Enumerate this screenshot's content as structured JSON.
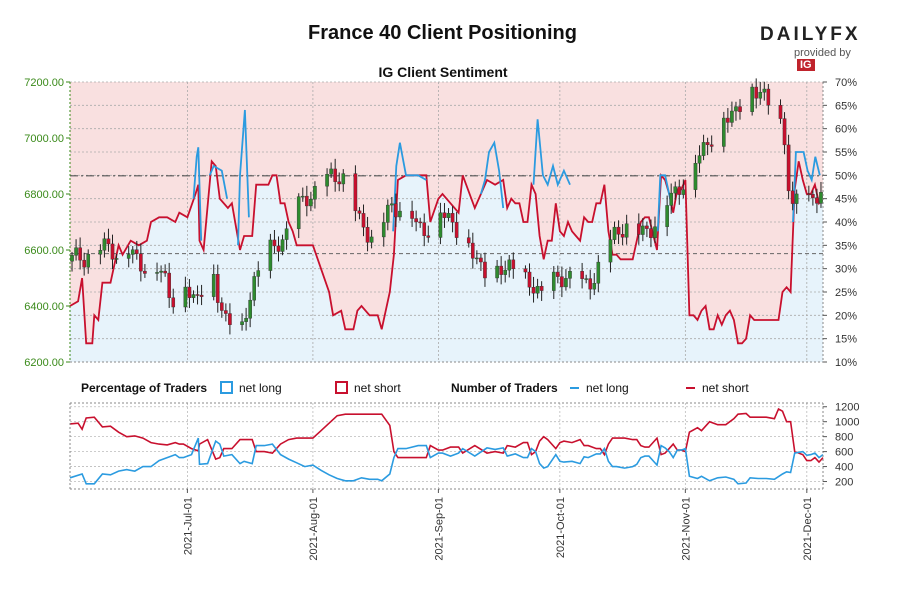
{
  "header": {
    "title": "France 40 Client Positioning",
    "subtitle": "IG Client Sentiment",
    "logo_text": "DAILYFX",
    "logo_sub": "provided by",
    "logo_ig": "IG"
  },
  "legend": {
    "pct_title": "Percentage of Traders",
    "pct_long": "net long",
    "pct_short": "net short",
    "num_title": "Number of Traders",
    "num_long": "net long",
    "num_short": "net short"
  },
  "colors": {
    "long": "#2b9be0",
    "short": "#c8102e",
    "long_fill": "#e7f3fb",
    "short_fill": "#f9e0e0",
    "price_axis": "#3a8a1a",
    "candle_up": "#2e8b2e",
    "candle_down": "#c8102e"
  },
  "chart_data": {
    "type": "candlestick+line",
    "title": "France 40 Client Positioning",
    "subtitle": "IG Client Sentiment",
    "x_tick_labels": [
      "2021-Jul-01",
      "2021-Aug-01",
      "2021-Sep-01",
      "2021-Oct-01",
      "2021-Nov-01",
      "2021-Dec-01"
    ],
    "x_tick_days": [
      29,
      60,
      91,
      121,
      152,
      182
    ],
    "x_range_days": [
      0,
      186
    ],
    "price_axis": {
      "ticks": [
        6200,
        6400,
        6600,
        6800,
        7000,
        7200
      ],
      "tick_labels": [
        "6200.00",
        "6400.00",
        "6600.00",
        "6800.00",
        "7000.00",
        "7200.00"
      ],
      "ylim": [
        6200,
        7200
      ]
    },
    "pct_axis": {
      "ticks": [
        10,
        15,
        20,
        25,
        30,
        35,
        40,
        45,
        50,
        55,
        60,
        65,
        70
      ],
      "tick_labels": [
        "10%",
        "15%",
        "20%",
        "25%",
        "30%",
        "35%",
        "40%",
        "45%",
        "50%",
        "55%",
        "60%",
        "65%",
        "70%"
      ],
      "ylim": [
        10,
        70
      ]
    },
    "count_axis": {
      "ticks": [
        200,
        400,
        600,
        800,
        1000,
        1200
      ],
      "tick_labels": [
        "200",
        "400",
        "600",
        "800",
        "1000",
        "1200"
      ],
      "ylim": [
        100,
        1250
      ]
    },
    "ref_lines": {
      "price_dashdot": 6865,
      "price_dashed": 6587
    },
    "pct_short_keypoints": [
      [
        0,
        22
      ],
      [
        2,
        23
      ],
      [
        3,
        28
      ],
      [
        4,
        14
      ],
      [
        5.5,
        14
      ],
      [
        6,
        20
      ],
      [
        7,
        19
      ],
      [
        8,
        27
      ],
      [
        10,
        27
      ],
      [
        12,
        35
      ],
      [
        13,
        33
      ],
      [
        15,
        36
      ],
      [
        17,
        35
      ],
      [
        19,
        36
      ],
      [
        20,
        40
      ],
      [
        22,
        41
      ],
      [
        24,
        41
      ],
      [
        26,
        40
      ],
      [
        27,
        42
      ],
      [
        29,
        41
      ],
      [
        31,
        46
      ],
      [
        31.7,
        48
      ],
      [
        32,
        36
      ],
      [
        33,
        34
      ],
      [
        35,
        53
      ],
      [
        36,
        52
      ],
      [
        37,
        45
      ],
      [
        39,
        43
      ],
      [
        40,
        44
      ],
      [
        42,
        34
      ],
      [
        43,
        37
      ],
      [
        45,
        37
      ],
      [
        46,
        48
      ],
      [
        48,
        48
      ],
      [
        49,
        48
      ],
      [
        50,
        50
      ],
      [
        51,
        50
      ],
      [
        52,
        44
      ],
      [
        53,
        44
      ],
      [
        54,
        40
      ],
      [
        55,
        38
      ],
      [
        56,
        35
      ],
      [
        57,
        35
      ],
      [
        58,
        35
      ],
      [
        60,
        35
      ],
      [
        62,
        30
      ],
      [
        64,
        25
      ],
      [
        65,
        20
      ],
      [
        67,
        21
      ],
      [
        68,
        17
      ],
      [
        70,
        17
      ],
      [
        71,
        21
      ],
      [
        72,
        22
      ],
      [
        74,
        20
      ],
      [
        76,
        20
      ],
      [
        77,
        17
      ],
      [
        79,
        25
      ],
      [
        80,
        33
      ],
      [
        81,
        49
      ],
      [
        83,
        50
      ],
      [
        86,
        50
      ],
      [
        88,
        50
      ],
      [
        89,
        40
      ],
      [
        91,
        45
      ],
      [
        92,
        46
      ],
      [
        94,
        44
      ],
      [
        96,
        42
      ],
      [
        97,
        50
      ],
      [
        100,
        43
      ],
      [
        103,
        49
      ],
      [
        105,
        48
      ],
      [
        107,
        49
      ],
      [
        108,
        43
      ],
      [
        109,
        45
      ],
      [
        110,
        44
      ],
      [
        111,
        44
      ],
      [
        112,
        40
      ],
      [
        113,
        40
      ],
      [
        114,
        48
      ],
      [
        115,
        46
      ],
      [
        116,
        37
      ],
      [
        117,
        32
      ],
      [
        118,
        36
      ],
      [
        119,
        36
      ],
      [
        120,
        44
      ],
      [
        121,
        38
      ],
      [
        122,
        37
      ],
      [
        123,
        40
      ],
      [
        124,
        38
      ],
      [
        125,
        37
      ],
      [
        126,
        36
      ],
      [
        127,
        41
      ],
      [
        128,
        40
      ],
      [
        129,
        40
      ],
      [
        130,
        44
      ],
      [
        131,
        44
      ],
      [
        132,
        48
      ],
      [
        133,
        38
      ],
      [
        134,
        33
      ],
      [
        135,
        33
      ],
      [
        136,
        32
      ],
      [
        137,
        32
      ],
      [
        138,
        32
      ],
      [
        139,
        32
      ],
      [
        140,
        36
      ],
      [
        141,
        40
      ],
      [
        142,
        41
      ],
      [
        143,
        41
      ],
      [
        145,
        34
      ],
      [
        146,
        50
      ],
      [
        147,
        49
      ],
      [
        148,
        46
      ],
      [
        149,
        42
      ],
      [
        150,
        47
      ],
      [
        151,
        47
      ],
      [
        152,
        49
      ],
      [
        153,
        20
      ],
      [
        154,
        20
      ],
      [
        155,
        19
      ],
      [
        156,
        21
      ],
      [
        157,
        22
      ],
      [
        158,
        17
      ],
      [
        159,
        17
      ],
      [
        160,
        20
      ],
      [
        161,
        18
      ],
      [
        162,
        20
      ],
      [
        163,
        21
      ],
      [
        164,
        19
      ],
      [
        165,
        14
      ],
      [
        166,
        14
      ],
      [
        167,
        15
      ],
      [
        168,
        20
      ],
      [
        169,
        19
      ],
      [
        170,
        19
      ],
      [
        171,
        19
      ],
      [
        172,
        19
      ],
      [
        174,
        19
      ],
      [
        175,
        19
      ],
      [
        176,
        25
      ],
      [
        177,
        26
      ],
      [
        178,
        25
      ],
      [
        179,
        47
      ],
      [
        180,
        53
      ],
      [
        181,
        49
      ],
      [
        182,
        46
      ],
      [
        183,
        46
      ],
      [
        184,
        48
      ],
      [
        185,
        44
      ],
      [
        186,
        45
      ]
    ],
    "candles_approx": "daily OHLC candles from ~6450 (late June) rising to ~7180 (mid Nov) and ending near ~6800 (early Dec)",
    "count_long_keypoints": [
      [
        0,
        250
      ],
      [
        3,
        300
      ],
      [
        4,
        170
      ],
      [
        6,
        170
      ],
      [
        8,
        300
      ],
      [
        10,
        290
      ],
      [
        12,
        340
      ],
      [
        14,
        360
      ],
      [
        16,
        340
      ],
      [
        18,
        400
      ],
      [
        20,
        400
      ],
      [
        22,
        480
      ],
      [
        24,
        520
      ],
      [
        26,
        560
      ],
      [
        27,
        520
      ],
      [
        28,
        520
      ],
      [
        30,
        560
      ],
      [
        31.7,
        780
      ],
      [
        32,
        430
      ],
      [
        34,
        440
      ],
      [
        36,
        740
      ],
      [
        37,
        700
      ],
      [
        38,
        540
      ],
      [
        40,
        560
      ],
      [
        42,
        440
      ],
      [
        43,
        470
      ],
      [
        45,
        440
      ],
      [
        46,
        680
      ],
      [
        48,
        680
      ],
      [
        50,
        700
      ],
      [
        52,
        560
      ],
      [
        54,
        500
      ],
      [
        56,
        450
      ],
      [
        58,
        400
      ],
      [
        60,
        420
      ],
      [
        62,
        350
      ],
      [
        64,
        290
      ],
      [
        66,
        240
      ],
      [
        68,
        210
      ],
      [
        70,
        210
      ],
      [
        72,
        250
      ],
      [
        74,
        230
      ],
      [
        76,
        230
      ],
      [
        77,
        210
      ],
      [
        79,
        300
      ],
      [
        80,
        520
      ],
      [
        81,
        640
      ],
      [
        83,
        640
      ],
      [
        86,
        680
      ],
      [
        88,
        680
      ],
      [
        89,
        520
      ],
      [
        91,
        580
      ],
      [
        92,
        580
      ],
      [
        94,
        540
      ],
      [
        96,
        580
      ],
      [
        97,
        640
      ],
      [
        100,
        540
      ],
      [
        103,
        650
      ],
      [
        105,
        630
      ],
      [
        107,
        650
      ],
      [
        108,
        540
      ],
      [
        110,
        570
      ],
      [
        112,
        520
      ],
      [
        113,
        520
      ],
      [
        114,
        640
      ],
      [
        115,
        600
      ],
      [
        116,
        440
      ],
      [
        117,
        380
      ],
      [
        118,
        400
      ],
      [
        120,
        560
      ],
      [
        121,
        470
      ],
      [
        122,
        460
      ],
      [
        124,
        470
      ],
      [
        126,
        440
      ],
      [
        127,
        530
      ],
      [
        128,
        520
      ],
      [
        130,
        570
      ],
      [
        131,
        570
      ],
      [
        132,
        640
      ],
      [
        133,
        470
      ],
      [
        134,
        400
      ],
      [
        135,
        400
      ],
      [
        137,
        380
      ],
      [
        139,
        400
      ],
      [
        140,
        430
      ],
      [
        141,
        520
      ],
      [
        142,
        540
      ],
      [
        143,
        540
      ],
      [
        145,
        420
      ],
      [
        146,
        680
      ],
      [
        147,
        650
      ],
      [
        148,
        600
      ],
      [
        149,
        520
      ],
      [
        150,
        620
      ],
      [
        151,
        620
      ],
      [
        152,
        640
      ],
      [
        153,
        270
      ],
      [
        155,
        240
      ],
      [
        156,
        270
      ],
      [
        158,
        210
      ],
      [
        160,
        250
      ],
      [
        162,
        260
      ],
      [
        164,
        230
      ],
      [
        165,
        170
      ],
      [
        167,
        180
      ],
      [
        168,
        250
      ],
      [
        170,
        240
      ],
      [
        172,
        240
      ],
      [
        174,
        230
      ],
      [
        176,
        300
      ],
      [
        177,
        330
      ],
      [
        178,
        320
      ],
      [
        179,
        580
      ],
      [
        181,
        600
      ],
      [
        182,
        550
      ],
      [
        183,
        560
      ],
      [
        184,
        580
      ],
      [
        185,
        520
      ],
      [
        186,
        560
      ]
    ],
    "count_short_keypoints": [
      [
        0,
        970
      ],
      [
        2,
        980
      ],
      [
        3,
        900
      ],
      [
        4,
        1050
      ],
      [
        6,
        1060
      ],
      [
        8,
        930
      ],
      [
        10,
        940
      ],
      [
        12,
        860
      ],
      [
        14,
        800
      ],
      [
        16,
        810
      ],
      [
        18,
        780
      ],
      [
        20,
        720
      ],
      [
        22,
        700
      ],
      [
        24,
        690
      ],
      [
        26,
        720
      ],
      [
        27,
        700
      ],
      [
        28,
        700
      ],
      [
        30,
        640
      ],
      [
        31.7,
        610
      ],
      [
        32,
        700
      ],
      [
        34,
        760
      ],
      [
        36,
        500
      ],
      [
        37,
        520
      ],
      [
        38,
        640
      ],
      [
        40,
        640
      ],
      [
        42,
        760
      ],
      [
        43,
        760
      ],
      [
        45,
        760
      ],
      [
        46,
        600
      ],
      [
        48,
        600
      ],
      [
        50,
        580
      ],
      [
        52,
        700
      ],
      [
        54,
        760
      ],
      [
        56,
        780
      ],
      [
        58,
        780
      ],
      [
        60,
        780
      ],
      [
        62,
        880
      ],
      [
        64,
        980
      ],
      [
        66,
        1080
      ],
      [
        68,
        1100
      ],
      [
        70,
        1100
      ],
      [
        72,
        1100
      ],
      [
        74,
        1100
      ],
      [
        76,
        1100
      ],
      [
        77,
        1100
      ],
      [
        79,
        950
      ],
      [
        80,
        600
      ],
      [
        81,
        520
      ],
      [
        83,
        520
      ],
      [
        86,
        520
      ],
      [
        88,
        520
      ],
      [
        89,
        680
      ],
      [
        91,
        620
      ],
      [
        92,
        620
      ],
      [
        94,
        660
      ],
      [
        96,
        660
      ],
      [
        97,
        580
      ],
      [
        100,
        680
      ],
      [
        103,
        580
      ],
      [
        105,
        600
      ],
      [
        107,
        580
      ],
      [
        108,
        680
      ],
      [
        110,
        660
      ],
      [
        112,
        720
      ],
      [
        113,
        720
      ],
      [
        114,
        560
      ],
      [
        115,
        600
      ],
      [
        116,
        740
      ],
      [
        117,
        800
      ],
      [
        118,
        760
      ],
      [
        120,
        640
      ],
      [
        121,
        720
      ],
      [
        122,
        740
      ],
      [
        124,
        720
      ],
      [
        126,
        760
      ],
      [
        127,
        680
      ],
      [
        128,
        680
      ],
      [
        130,
        640
      ],
      [
        131,
        640
      ],
      [
        132,
        560
      ],
      [
        133,
        700
      ],
      [
        134,
        780
      ],
      [
        135,
        780
      ],
      [
        137,
        780
      ],
      [
        139,
        760
      ],
      [
        140,
        760
      ],
      [
        141,
        680
      ],
      [
        142,
        660
      ],
      [
        143,
        660
      ],
      [
        145,
        780
      ],
      [
        146,
        560
      ],
      [
        147,
        580
      ],
      [
        148,
        640
      ],
      [
        149,
        700
      ],
      [
        150,
        620
      ],
      [
        151,
        620
      ],
      [
        152,
        600
      ],
      [
        153,
        860
      ],
      [
        155,
        920
      ],
      [
        156,
        880
      ],
      [
        158,
        1000
      ],
      [
        160,
        960
      ],
      [
        162,
        960
      ],
      [
        164,
        1040
      ],
      [
        165,
        1100
      ],
      [
        167,
        1110
      ],
      [
        168,
        1060
      ],
      [
        170,
        1060
      ],
      [
        172,
        1060
      ],
      [
        174,
        1040
      ],
      [
        175,
        1170
      ],
      [
        176,
        1140
      ],
      [
        177,
        1000
      ],
      [
        178,
        1000
      ],
      [
        179,
        600
      ],
      [
        181,
        560
      ],
      [
        182,
        480
      ],
      [
        183,
        480
      ],
      [
        184,
        520
      ],
      [
        185,
        460
      ],
      [
        186,
        520
      ]
    ]
  }
}
